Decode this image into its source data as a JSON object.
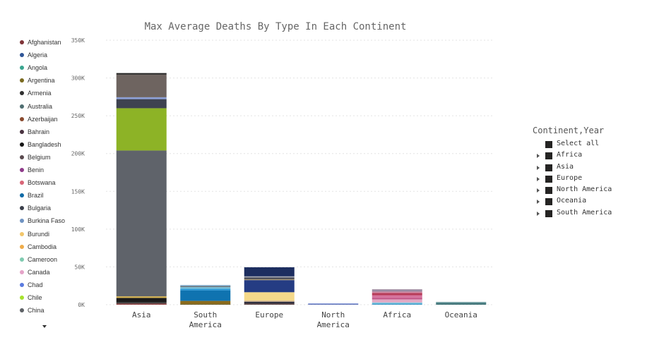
{
  "chart_data": {
    "type": "bar",
    "stacked": true,
    "title": "Max Average Deaths By Type In Each Continent",
    "xlabel": "",
    "ylabel": "",
    "ylim": [
      0,
      350000
    ],
    "yticks": [
      {
        "value": 0,
        "label": "0K"
      },
      {
        "value": 50000,
        "label": "50K"
      },
      {
        "value": 100000,
        "label": "100K"
      },
      {
        "value": 150000,
        "label": "150K"
      },
      {
        "value": 200000,
        "label": "200K"
      },
      {
        "value": 250000,
        "label": "250K"
      },
      {
        "value": 300000,
        "label": "300K"
      },
      {
        "value": 350000,
        "label": "350K"
      }
    ],
    "grid": "horizontal dotted",
    "legend_position": "left",
    "categories": [
      {
        "name": "Asia",
        "lines": [
          "Asia"
        ]
      },
      {
        "name": "South America",
        "lines": [
          "South",
          "America"
        ]
      },
      {
        "name": "Europe",
        "lines": [
          "Europe"
        ]
      },
      {
        "name": "North America",
        "lines": [
          "North",
          "America"
        ]
      },
      {
        "name": "Africa",
        "lines": [
          "Africa"
        ]
      },
      {
        "name": "Oceania",
        "lines": [
          "Oceania"
        ]
      }
    ],
    "stacks": [
      {
        "category": "Asia",
        "segments": [
          {
            "value": 1500,
            "color": "#8a3a3a"
          },
          {
            "value": 1500,
            "color": "#444444"
          },
          {
            "value": 6000,
            "color": "#1a1a1a"
          },
          {
            "value": 2000,
            "color": "#d9b44a"
          },
          {
            "value": 193000,
            "color": "#5f636a"
          },
          {
            "value": 56000,
            "color": "#8db326"
          },
          {
            "value": 12000,
            "color": "#3e4250"
          },
          {
            "value": 2500,
            "color": "#8c9fd6"
          },
          {
            "value": 30000,
            "color": "#6e6460"
          },
          {
            "value": 2000,
            "color": "#222222"
          }
        ]
      },
      {
        "category": "South America",
        "segments": [
          {
            "value": 1000,
            "color": "#6a5a1e"
          },
          {
            "value": 4000,
            "color": "#8a6a1a"
          },
          {
            "value": 14000,
            "color": "#0f73b0"
          },
          {
            "value": 2000,
            "color": "#2a9ad8"
          },
          {
            "value": 2500,
            "color": "#7fc0d8"
          },
          {
            "value": 1000,
            "color": "#4c4c4c"
          },
          {
            "value": 1500,
            "color": "#7fa8c8"
          }
        ]
      },
      {
        "category": "Europe",
        "segments": [
          {
            "value": 1500,
            "color": "#5a4040"
          },
          {
            "value": 2500,
            "color": "#2f2f3f"
          },
          {
            "value": 1500,
            "color": "#d2b48c"
          },
          {
            "value": 11000,
            "color": "#f5d98a"
          },
          {
            "value": 16000,
            "color": "#253c83"
          },
          {
            "value": 1500,
            "color": "#a09070"
          },
          {
            "value": 2000,
            "color": "#3b3f4f"
          },
          {
            "value": 1500,
            "color": "#a7abb5"
          },
          {
            "value": 12000,
            "color": "#1d2e60"
          }
        ]
      },
      {
        "category": "North America",
        "segments": [
          {
            "value": 1000,
            "color": "#5b6fb5"
          },
          {
            "value": 800,
            "color": "#8fa0dd"
          }
        ]
      },
      {
        "category": "Africa",
        "segments": [
          {
            "value": 1500,
            "color": "#3a9ac8"
          },
          {
            "value": 1500,
            "color": "#86c6de"
          },
          {
            "value": 4000,
            "color": "#e2a9c4"
          },
          {
            "value": 2500,
            "color": "#c55d8d"
          },
          {
            "value": 3000,
            "color": "#d6709b"
          },
          {
            "value": 3000,
            "color": "#b73a58"
          },
          {
            "value": 2000,
            "color": "#cc86a0"
          },
          {
            "value": 1500,
            "color": "#8a7f9a"
          },
          {
            "value": 1500,
            "color": "#a694a8"
          }
        ]
      },
      {
        "category": "Oceania",
        "segments": [
          {
            "value": 2000,
            "color": "#3e7276"
          },
          {
            "value": 1500,
            "color": "#5b8e92"
          }
        ]
      }
    ],
    "legend": [
      {
        "name": "Afghanistan",
        "color": "#7f3338"
      },
      {
        "name": "Algeria",
        "color": "#2f5597"
      },
      {
        "name": "Angola",
        "color": "#3aa58f"
      },
      {
        "name": "Argentina",
        "color": "#7a6a1f"
      },
      {
        "name": "Armenia",
        "color": "#303030"
      },
      {
        "name": "Australia",
        "color": "#4f6e71"
      },
      {
        "name": "Azerbaijan",
        "color": "#8a4a2e"
      },
      {
        "name": "Bahrain",
        "color": "#4a3340"
      },
      {
        "name": "Bangladesh",
        "color": "#151515"
      },
      {
        "name": "Belgium",
        "color": "#5a4a4f"
      },
      {
        "name": "Benin",
        "color": "#8e3a8a"
      },
      {
        "name": "Botswana",
        "color": "#d96678"
      },
      {
        "name": "Brazil",
        "color": "#0f6aa6"
      },
      {
        "name": "Bulgaria",
        "color": "#3a3f4a"
      },
      {
        "name": "Burkina Faso",
        "color": "#6f93c2"
      },
      {
        "name": "Burundi",
        "color": "#f2c66b"
      },
      {
        "name": "Cambodia",
        "color": "#efac4a"
      },
      {
        "name": "Cameroon",
        "color": "#7fcbb0"
      },
      {
        "name": "Canada",
        "color": "#e5a3c8"
      },
      {
        "name": "Chad",
        "color": "#5b7be0"
      },
      {
        "name": "Chile",
        "color": "#a6e22e"
      },
      {
        "name": "China",
        "color": "#5e6166"
      }
    ]
  },
  "slicer": {
    "header": "Continent,Year",
    "items": [
      {
        "label": "Select all",
        "expandable": false
      },
      {
        "label": "Africa",
        "expandable": true
      },
      {
        "label": "Asia",
        "expandable": true
      },
      {
        "label": "Europe",
        "expandable": true
      },
      {
        "label": "North America",
        "expandable": true
      },
      {
        "label": "Oceania",
        "expandable": true
      },
      {
        "label": "South America",
        "expandable": true
      }
    ]
  },
  "colors": {
    "axis_text": "#666666",
    "grid": "#e3e3e3",
    "checkbox": "#252423"
  }
}
